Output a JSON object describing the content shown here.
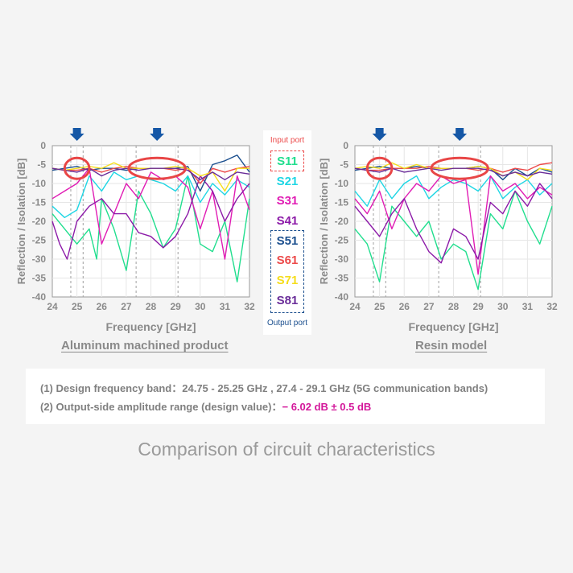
{
  "colors": {
    "S11": "#21de8e",
    "S21": "#1fd6e4",
    "S31": "#e01cb4",
    "S41": "#8c1aa8",
    "S51": "#1b4f8e",
    "S61": "#ec4a4a",
    "S71": "#f5dd1b",
    "S81": "#6a2d99",
    "input_port": "#ec4a4a",
    "output_port": "#1b4f8e",
    "highlight": "#d3179a",
    "arrow": "#1557a6"
  },
  "legend": {
    "input_port": "Input port",
    "output_port": "Output port",
    "items": [
      "S11",
      "S21",
      "S31",
      "S41",
      "S51",
      "S61",
      "S71",
      "S81"
    ]
  },
  "captions": {
    "left": "Aluminum machined product",
    "right": "Resin model"
  },
  "notes": {
    "line1": "(1)  Design frequency band：24.75 - 25.25 GHz , 27.4 - 29.1 GHz  (5G communication bands)",
    "line2_prefix": "(2)  Output-side amplitude range (design value)：",
    "line2_value": "− 6.02 dB ± 0.5 dB"
  },
  "footer_title": "Comparison of circuit characteristics",
  "chart_data": [
    {
      "type": "line",
      "title": "",
      "caption": "Aluminum machined product",
      "xlabel": "Frequency [GHz]",
      "ylabel": "Reflection / Isolation [dB]",
      "xlim": [
        24,
        32
      ],
      "ylim": [
        -40,
        0
      ],
      "xticks": [
        "24",
        "25",
        "26",
        "27",
        "28",
        "29",
        "30",
        "31",
        "32"
      ],
      "yticks": [
        "0",
        "-5",
        "-10",
        "-15",
        "-20",
        "-25",
        "-30",
        "-35",
        "-40"
      ],
      "grid": true,
      "band_markers_ghz": [
        24.75,
        25.25,
        27.4,
        29.1
      ],
      "highlight_ovals_ghz": [
        [
          24.5,
          25.5
        ],
        [
          27.1,
          29.4
        ]
      ],
      "arrows_at_ghz": [
        25.0,
        28.25
      ],
      "series": [
        {
          "name": "S11",
          "x": [
            24,
            24.5,
            25,
            25.5,
            25.8,
            26,
            26.5,
            27,
            27.5,
            28,
            28.5,
            29,
            29.5,
            30,
            30.5,
            31,
            31.5,
            32
          ],
          "y": [
            -18,
            -22,
            -26,
            -22,
            -30,
            -14,
            -22,
            -33,
            -12,
            -18,
            -27,
            -22,
            -8,
            -26,
            -28,
            -20,
            -36,
            -14
          ]
        },
        {
          "name": "S21",
          "x": [
            24,
            24.5,
            25,
            25.5,
            26,
            26.5,
            27,
            27.5,
            28,
            28.5,
            29,
            29.5,
            30,
            30.5,
            31,
            31.5,
            32
          ],
          "y": [
            -16,
            -19,
            -17,
            -8,
            -12,
            -7,
            -9,
            -8,
            -9,
            -10,
            -12,
            -8,
            -15,
            -10,
            -13,
            -9,
            -11
          ]
        },
        {
          "name": "S31",
          "x": [
            24,
            24.5,
            25,
            25.5,
            26,
            26.5,
            27,
            27.5,
            28,
            28.5,
            29,
            29.5,
            30,
            30.5,
            31,
            31.5,
            32
          ],
          "y": [
            -14,
            -12,
            -10,
            -6,
            -26,
            -18,
            -10,
            -14,
            -7,
            -9,
            -8,
            -11,
            -22,
            -12,
            -30,
            -8,
            -17
          ]
        },
        {
          "name": "S41",
          "x": [
            24,
            24.3,
            24.6,
            25,
            25.5,
            26,
            26.5,
            27,
            27.5,
            28,
            28.5,
            29,
            29.5,
            30,
            30.5,
            31,
            31.5,
            32
          ],
          "y": [
            -20,
            -26,
            -30,
            -20,
            -16,
            -14,
            -18,
            -18,
            -23,
            -24,
            -27,
            -24,
            -18,
            -8,
            -12,
            -20,
            -14,
            -10
          ]
        },
        {
          "name": "S51",
          "x": [
            24,
            24.5,
            25,
            25.5,
            26,
            26.5,
            27,
            27.5,
            28,
            28.5,
            29,
            29.5,
            30,
            30.5,
            31,
            31.5,
            32
          ],
          "y": [
            -6.5,
            -6,
            -5.5,
            -6.5,
            -6,
            -6,
            -6.5,
            -6,
            -6,
            -6,
            -6,
            -5.5,
            -12,
            -5,
            -4,
            -2.5,
            -7
          ]
        },
        {
          "name": "S61",
          "x": [
            24,
            24.5,
            25,
            25.5,
            26,
            26.5,
            27,
            27.5,
            28,
            28.5,
            29,
            29.5,
            30,
            30.5,
            31,
            31.5,
            32
          ],
          "y": [
            -6,
            -6.5,
            -6.5,
            -6,
            -7,
            -6,
            -5.5,
            -6,
            -6,
            -6,
            -6.5,
            -6,
            -10,
            -6,
            -7,
            -6,
            -5.5
          ]
        },
        {
          "name": "S71",
          "x": [
            24,
            24.5,
            25,
            25.5,
            26,
            26.5,
            27,
            27.5,
            28,
            28.5,
            29,
            29.5,
            30,
            30.5,
            31,
            31.5,
            32
          ],
          "y": [
            -6,
            -6.5,
            -6,
            -5.5,
            -6,
            -4.5,
            -6,
            -6,
            -6,
            -6,
            -5.5,
            -6,
            -8,
            -7,
            -12,
            -6,
            -6
          ]
        },
        {
          "name": "S81",
          "x": [
            24,
            24.5,
            25,
            25.5,
            26,
            26.5,
            27,
            27.5,
            28,
            28.5,
            29,
            29.5,
            30,
            30.5,
            31,
            31.5,
            32
          ],
          "y": [
            -6,
            -6.5,
            -7,
            -6,
            -8,
            -6.5,
            -6,
            -6.5,
            -6,
            -6,
            -6,
            -6.5,
            -9,
            -7,
            -9,
            -7,
            -7.5
          ]
        }
      ]
    },
    {
      "type": "line",
      "title": "",
      "caption": "Resin model",
      "xlabel": "Frequency [GHz]",
      "ylabel": "Reflection / Isolation [dB]",
      "xlim": [
        24,
        32
      ],
      "ylim": [
        -40,
        0
      ],
      "xticks": [
        "24",
        "25",
        "26",
        "27",
        "28",
        "29",
        "30",
        "31",
        "32"
      ],
      "yticks": [
        "0",
        "-5",
        "-10",
        "-15",
        "-20",
        "-25",
        "-30",
        "-35",
        "-40"
      ],
      "grid": true,
      "band_markers_ghz": [
        24.75,
        25.25,
        27.4,
        29.1
      ],
      "highlight_ovals_ghz": [
        [
          24.5,
          25.5
        ],
        [
          27.1,
          29.4
        ]
      ],
      "arrows_at_ghz": [
        25.0,
        28.25
      ],
      "series": [
        {
          "name": "S11",
          "x": [
            24,
            24.5,
            25,
            25.5,
            26,
            26.5,
            27,
            27.5,
            28,
            28.5,
            29,
            29.5,
            30,
            30.5,
            31,
            31.5,
            32
          ],
          "y": [
            -22,
            -26,
            -36,
            -16,
            -20,
            -24,
            -20,
            -30,
            -26,
            -28,
            -38,
            -18,
            -22,
            -12,
            -20,
            -26,
            -16
          ]
        },
        {
          "name": "S21",
          "x": [
            24,
            24.5,
            25,
            25.5,
            26,
            26.5,
            27,
            27.5,
            28,
            28.5,
            29,
            29.5,
            30,
            30.5,
            31,
            31.5,
            32
          ],
          "y": [
            -12,
            -16,
            -9,
            -14,
            -10,
            -8,
            -14,
            -11,
            -9,
            -10,
            -12,
            -8,
            -14,
            -11,
            -9,
            -13,
            -10
          ]
        },
        {
          "name": "S31",
          "x": [
            24,
            24.5,
            25,
            25.5,
            26,
            26.5,
            27,
            27.5,
            28,
            28.5,
            29,
            29.5,
            30,
            30.5,
            31,
            31.5,
            32
          ],
          "y": [
            -14,
            -18,
            -12,
            -22,
            -14,
            -10,
            -12,
            -8,
            -10,
            -9,
            -34,
            -8,
            -12,
            -10,
            -14,
            -11,
            -13
          ]
        },
        {
          "name": "S41",
          "x": [
            24,
            24.5,
            25,
            25.5,
            26,
            26.5,
            27,
            27.5,
            28,
            28.5,
            29,
            29.5,
            30,
            30.5,
            31,
            31.5,
            32
          ],
          "y": [
            -16,
            -20,
            -24,
            -18,
            -14,
            -22,
            -28,
            -31,
            -22,
            -24,
            -30,
            -15,
            -18,
            -12,
            -16,
            -10,
            -14
          ]
        },
        {
          "name": "S51",
          "x": [
            24,
            24.5,
            25,
            25.5,
            26,
            26.5,
            27,
            27.5,
            28,
            28.5,
            29,
            29.5,
            30,
            30.5,
            31,
            31.5,
            32
          ],
          "y": [
            -6.5,
            -6,
            -5.5,
            -6,
            -6,
            -5.5,
            -6,
            -6,
            -6,
            -6,
            -5.5,
            -6,
            -9,
            -6,
            -8,
            -6,
            -7
          ]
        },
        {
          "name": "S61",
          "x": [
            24,
            24.5,
            25,
            25.5,
            26,
            26.5,
            27,
            27.5,
            28,
            28.5,
            29,
            29.5,
            30,
            30.5,
            31,
            31.5,
            32
          ],
          "y": [
            -6,
            -6.5,
            -6.5,
            -6,
            -6,
            -6,
            -5.5,
            -6,
            -6,
            -6,
            -6.5,
            -6,
            -7,
            -6,
            -6.5,
            -5,
            -4.5
          ]
        },
        {
          "name": "S71",
          "x": [
            24,
            24.5,
            25,
            25.5,
            26,
            26.5,
            27,
            27.5,
            28,
            28.5,
            29,
            29.5,
            30,
            30.5,
            31,
            31.5,
            32
          ],
          "y": [
            -6,
            -5.5,
            -6,
            -4.5,
            -6,
            -5,
            -6,
            -6,
            -6,
            -6,
            -5.5,
            -6,
            -8,
            -7,
            -9,
            -6,
            -6.5
          ]
        },
        {
          "name": "S81",
          "x": [
            24,
            24.5,
            25,
            25.5,
            26,
            26.5,
            27,
            27.5,
            28,
            28.5,
            29,
            29.5,
            30,
            30.5,
            31,
            31.5,
            32
          ],
          "y": [
            -6,
            -6.5,
            -7,
            -6,
            -7,
            -6.5,
            -6,
            -6.5,
            -6,
            -6,
            -6,
            -6.5,
            -8,
            -7,
            -8,
            -7,
            -7.5
          ]
        }
      ]
    }
  ]
}
